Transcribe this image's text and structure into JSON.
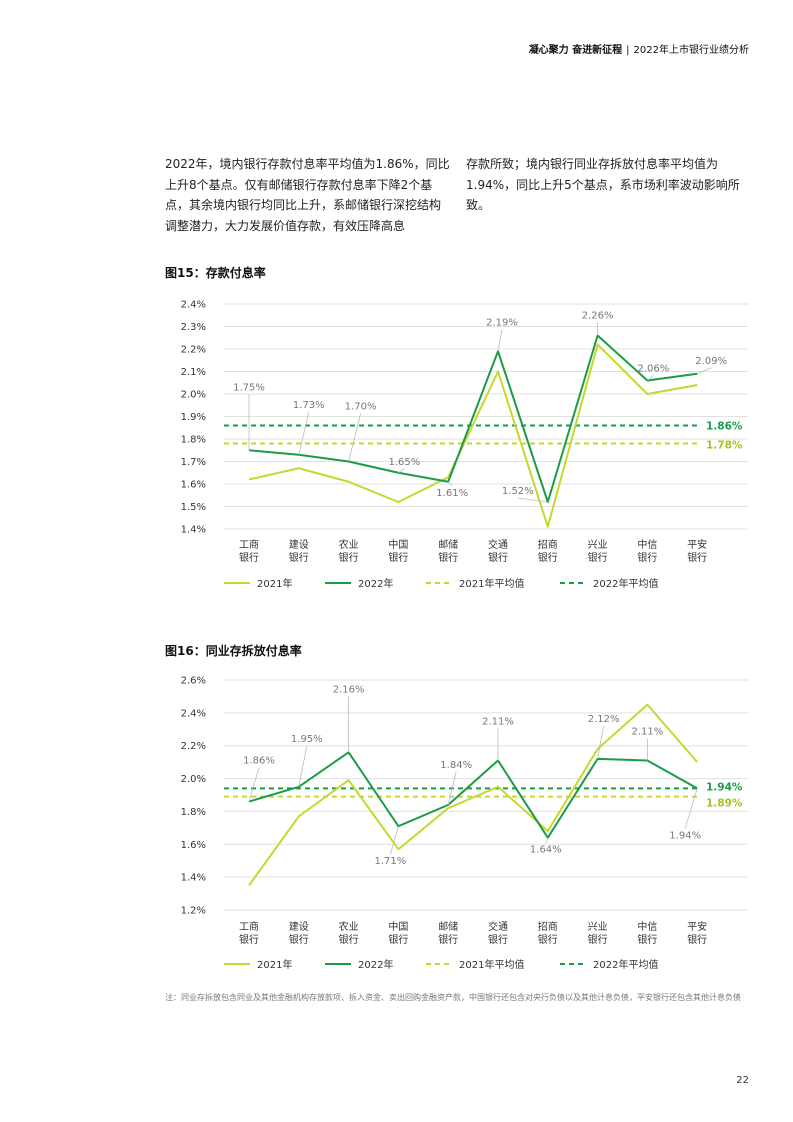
{
  "header": {
    "bold": "凝心聚力 奋进新征程",
    "separator": "|",
    "subtitle": "2022年上市银行业绩分析"
  },
  "paragraphs": {
    "left": "2022年，境内银行存款付息率平均值为1.86%，同比上升8个基点。仅有邮储银行存款付息率下降2个基点，其余境内银行均同比上升，系邮储银行深挖结构调整潜力，大力发展价值存款，有效压降高息",
    "right": "存款所致；境内银行同业存拆放付息率平均值为1.94%，同比上升5个基点，系市场利率波动影响所致。"
  },
  "colors": {
    "series_2021": "#c5d82e",
    "series_2022": "#1a9c46",
    "avg_2021_label": "#a8c21c",
    "avg_2022_label": "#1a9c46",
    "grid": "#e0e0e0"
  },
  "chart_data": [
    {
      "type": "line",
      "title": "图15：存款付息率",
      "categories": [
        [
          "工商",
          "银行"
        ],
        [
          "建设",
          "银行"
        ],
        [
          "农业",
          "银行"
        ],
        [
          "中国",
          "银行"
        ],
        [
          "邮储",
          "银行"
        ],
        [
          "交通",
          "银行"
        ],
        [
          "招商",
          "银行"
        ],
        [
          "兴业",
          "银行"
        ],
        [
          "中信",
          "银行"
        ],
        [
          "平安",
          "银行"
        ]
      ],
      "yticks": [
        "2.4%",
        "2.3%",
        "2.2%",
        "2.1%",
        "2.0%",
        "1.9%",
        "1.8%",
        "1.7%",
        "1.6%",
        "1.5%",
        "1.4%"
      ],
      "ylim": [
        1.4,
        2.4
      ],
      "series": [
        {
          "name": "2021年",
          "values": [
            1.62,
            1.67,
            1.61,
            1.52,
            1.63,
            2.1,
            1.41,
            2.22,
            2.0,
            2.04
          ]
        },
        {
          "name": "2022年",
          "values": [
            1.75,
            1.73,
            1.7,
            1.65,
            1.61,
            2.19,
            1.52,
            2.26,
            2.06,
            2.09
          ]
        }
      ],
      "averages": [
        {
          "name": "2021年平均值",
          "value": 1.78,
          "label": "1.78%"
        },
        {
          "name": "2022年平均值",
          "value": 1.86,
          "label": "1.86%"
        }
      ],
      "data_labels": [
        {
          "text": "1.75%",
          "index": 0,
          "value": 1.75
        },
        {
          "text": "1.73%",
          "index": 1,
          "value": 1.73
        },
        {
          "text": "1.70%",
          "index": 2,
          "value": 1.7
        },
        {
          "text": "1.65%",
          "index": 3,
          "value": 1.65
        },
        {
          "text": "1.61%",
          "index": 4,
          "value": 1.61
        },
        {
          "text": "2.19%",
          "index": 5,
          "value": 2.19
        },
        {
          "text": "1.52%",
          "index": 6,
          "value": 1.52
        },
        {
          "text": "2.26%",
          "index": 7,
          "value": 2.26
        },
        {
          "text": "2.06%",
          "index": 8,
          "value": 2.06
        },
        {
          "text": "2.09%",
          "index": 9,
          "value": 2.09
        }
      ],
      "legend": [
        "2021年",
        "2022年",
        "2021年平均值",
        "2022年平均值"
      ]
    },
    {
      "type": "line",
      "title": "图16：同业存拆放付息率",
      "categories": [
        [
          "工商",
          "银行"
        ],
        [
          "建设",
          "银行"
        ],
        [
          "农业",
          "银行"
        ],
        [
          "中国",
          "银行"
        ],
        [
          "邮储",
          "银行"
        ],
        [
          "交通",
          "银行"
        ],
        [
          "招商",
          "银行"
        ],
        [
          "兴业",
          "银行"
        ],
        [
          "中信",
          "银行"
        ],
        [
          "平安",
          "银行"
        ]
      ],
      "yticks": [
        "2.6%",
        "2.4%",
        "2.2%",
        "2.0%",
        "1.8%",
        "1.6%",
        "1.4%",
        "1.2%"
      ],
      "ylim": [
        1.2,
        2.6
      ],
      "series": [
        {
          "name": "2021年",
          "values": [
            1.35,
            1.77,
            1.99,
            1.57,
            1.82,
            1.95,
            1.68,
            2.18,
            2.45,
            2.1
          ]
        },
        {
          "name": "2022年",
          "values": [
            1.86,
            1.95,
            2.16,
            1.71,
            1.84,
            2.11,
            1.64,
            2.12,
            2.11,
            1.94
          ]
        }
      ],
      "averages": [
        {
          "name": "2021年平均值",
          "value": 1.89,
          "label": "1.89%"
        },
        {
          "name": "2022年平均值",
          "value": 1.94,
          "label": "1.94%"
        }
      ],
      "data_labels": [
        {
          "text": "1.86%",
          "index": 0,
          "value": 1.86
        },
        {
          "text": "1.95%",
          "index": 1,
          "value": 1.95
        },
        {
          "text": "2.16%",
          "index": 2,
          "value": 2.16
        },
        {
          "text": "1.71%",
          "index": 3,
          "value": 1.71
        },
        {
          "text": "1.84%",
          "index": 4,
          "value": 1.84
        },
        {
          "text": "2.11%",
          "index": 5,
          "value": 2.11
        },
        {
          "text": "1.64%",
          "index": 6,
          "value": 1.64
        },
        {
          "text": "2.12%",
          "index": 7,
          "value": 2.12
        },
        {
          "text": "2.11%",
          "index": 8,
          "value": 2.11
        },
        {
          "text": "1.94%",
          "index": 9,
          "value": 1.94
        }
      ],
      "legend": [
        "2021年",
        "2022年",
        "2021年平均值",
        "2022年平均值"
      ]
    }
  ],
  "note": "注：同业存拆放包含同业及其他金融机构存放款项、拆入资金、卖出回购金融资产款，中国银行还包含对央行负债以及其他计息负债，平安银行还包含其他计息负债",
  "page_number": "22"
}
